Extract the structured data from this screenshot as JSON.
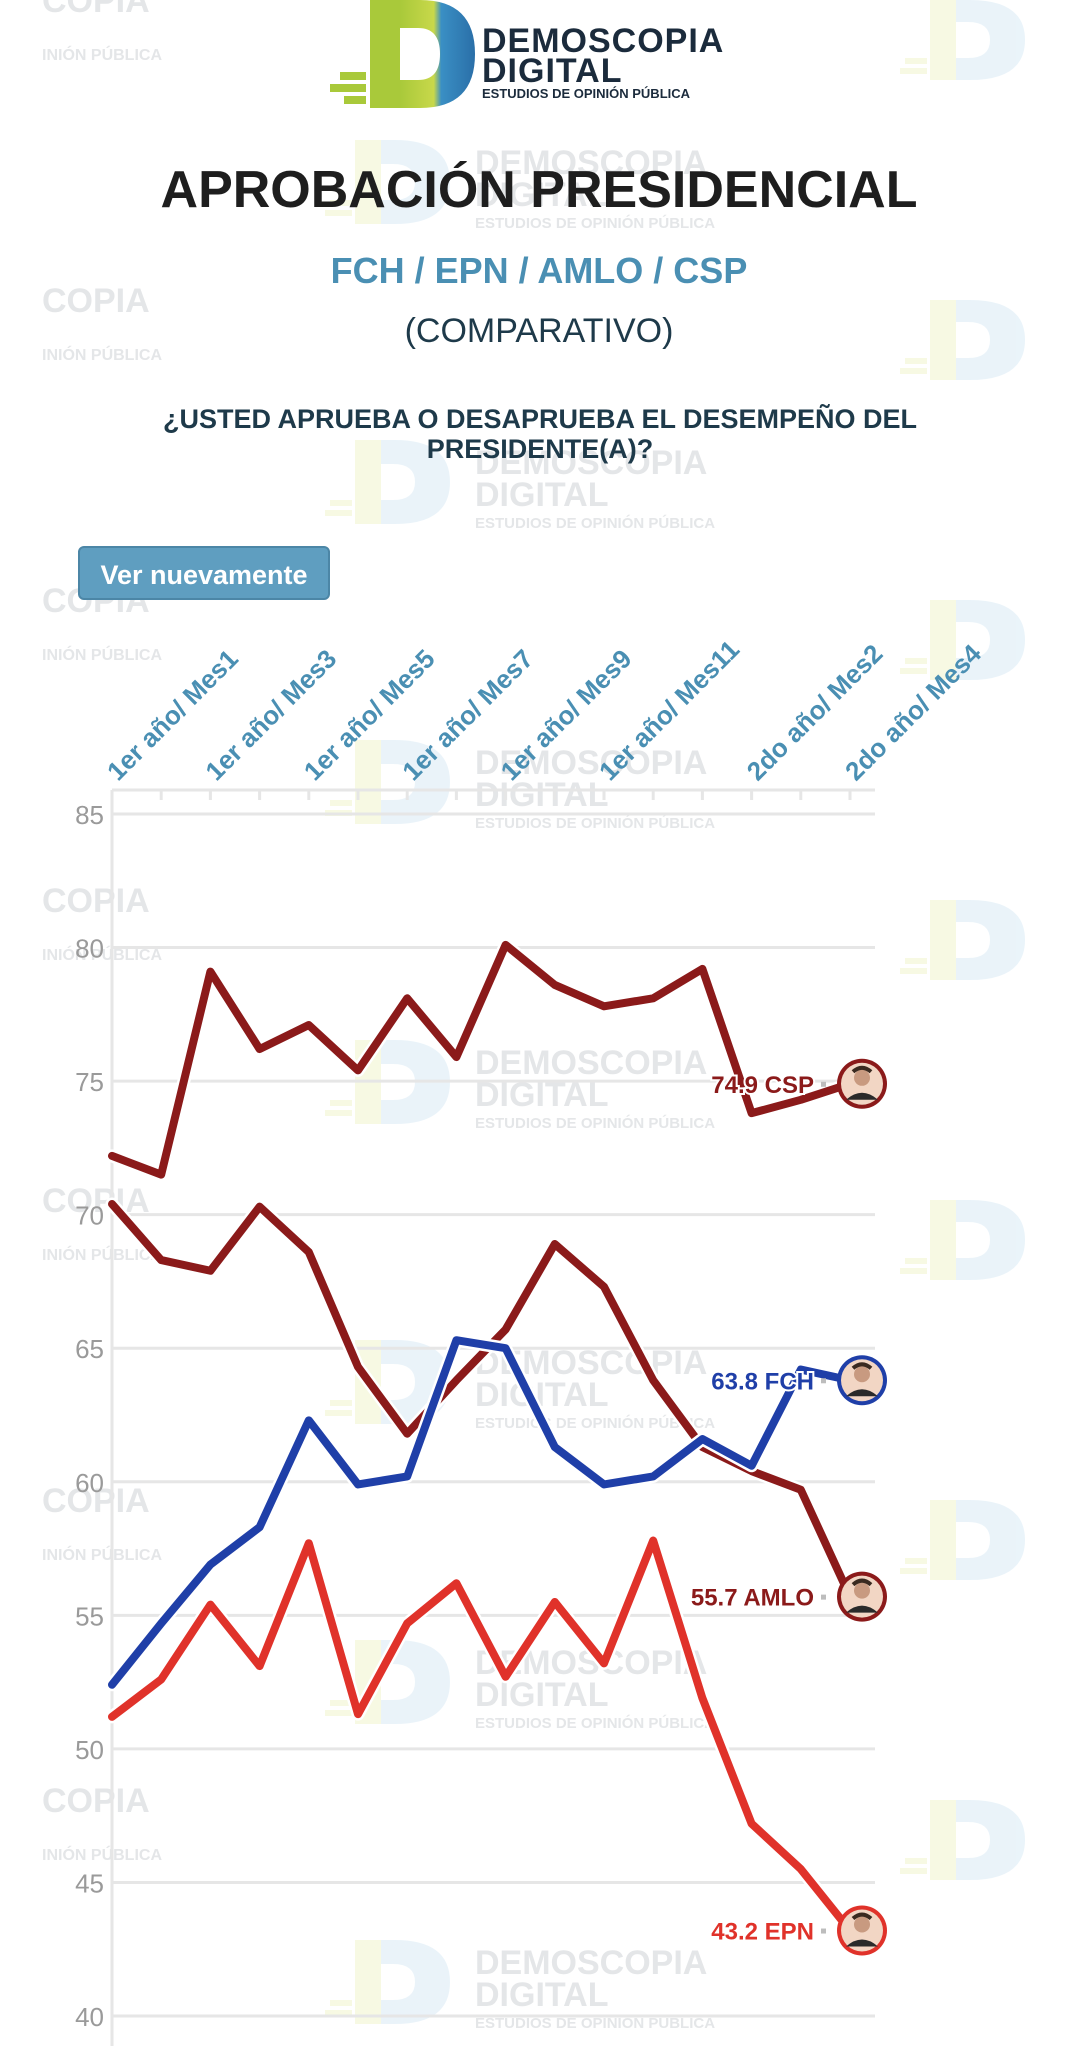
{
  "brand": {
    "name_line1": "DEMOSCOPIA",
    "name_line2": "DIGITAL",
    "tagline": "ESTUDIOS DE OPINIÓN PÚBLICA"
  },
  "watermark": {
    "copia": "COPIA",
    "opinion": "INIÓN PÚBLICA",
    "name_line1": "DEMOSCOPIA",
    "name_line2": "DIGITAL",
    "tagline": "ESTUDIOS DE OPINIÓN PÚBLICA"
  },
  "header": {
    "title": "APROBACIÓN PRESIDENCIAL",
    "subtitle": "FCH / EPN / AMLO / CSP",
    "note": "(COMPARATIVO)",
    "question": "¿USTED APRUEBA O DESAPRUEBA EL DESEMPEÑO DEL PRESIDENTE(A)?"
  },
  "controls": {
    "replay_label": "Ver nuevamente"
  },
  "colors": {
    "csp": "#8b1a1a",
    "amlo": "#8b1a1a",
    "fch": "#1f3fa8",
    "epn": "#e0322a",
    "axis_labels": "#4a8fb3",
    "grid": "#e6e6e6"
  },
  "chart_data": {
    "type": "line",
    "x_tick_labels": [
      "1er año/ Mes1",
      "1er año/ Mes3",
      "1er año/ Mes5",
      "1er año/ Mes7",
      "1er año/ Mes9",
      "1er año/ Mes11",
      "2do año/ Mes2",
      "2do año/ Mes4"
    ],
    "x_tick_index": [
      0,
      2,
      4,
      6,
      8,
      10,
      13,
      15
    ],
    "ylim": [
      40,
      85
    ],
    "y_ticks": [
      40,
      45,
      50,
      55,
      60,
      65,
      70,
      75,
      80,
      85
    ],
    "grid": true,
    "series": [
      {
        "name": "CSP",
        "label": "74.9 CSP",
        "color": "#8b1a1a",
        "x": [
          0,
          1,
          2,
          3,
          4,
          5,
          6,
          7,
          8,
          9,
          10,
          11,
          12,
          13,
          14,
          15
        ],
        "values": [
          72.2,
          71.5,
          79.1,
          76.2,
          77.1,
          75.4,
          78.1,
          75.9,
          80.1,
          78.6,
          77.8,
          78.1,
          79.2,
          73.8,
          74.3,
          74.9
        ]
      },
      {
        "name": "AMLO",
        "label": "55.7 AMLO",
        "color": "#8b1a1a",
        "x": [
          0,
          1,
          2,
          3,
          4,
          5,
          6,
          7,
          8,
          9,
          10,
          11,
          12,
          13,
          14,
          15
        ],
        "values": [
          70.4,
          68.3,
          67.9,
          70.3,
          68.6,
          64.3,
          61.8,
          63.8,
          65.7,
          68.9,
          67.3,
          63.8,
          61.3,
          60.4,
          59.7,
          55.7
        ]
      },
      {
        "name": "FCH",
        "label": "63.8 FCH",
        "color": "#1f3fa8",
        "x": [
          0,
          1,
          2,
          3,
          4,
          5,
          6,
          7,
          8,
          9,
          10,
          11,
          12,
          13,
          14,
          15
        ],
        "values": [
          52.4,
          54.7,
          56.9,
          58.3,
          62.3,
          59.9,
          60.2,
          65.3,
          65.0,
          61.3,
          59.9,
          60.2,
          61.6,
          60.6,
          64.2,
          63.8
        ]
      },
      {
        "name": "EPN",
        "label": "43.2 EPN",
        "color": "#e0322a",
        "x": [
          0,
          1,
          2,
          3,
          4,
          5,
          6,
          7,
          8,
          9,
          10,
          11,
          12,
          13,
          14,
          15
        ],
        "values": [
          51.2,
          52.6,
          55.4,
          53.1,
          57.7,
          51.3,
          54.7,
          56.2,
          52.7,
          55.5,
          53.2,
          57.8,
          51.9,
          47.2,
          45.5,
          43.2
        ]
      }
    ]
  }
}
